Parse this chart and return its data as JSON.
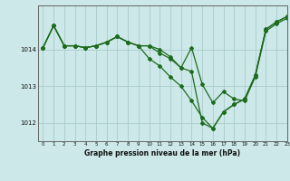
{
  "title": "Graphe pression niveau de la mer (hPa)",
  "bg_color": "#cce8e8",
  "grid_color": "#aacccc",
  "line_color": "#1e6b1e",
  "xlim": [
    -0.5,
    23
  ],
  "ylim": [
    1011.5,
    1015.2
  ],
  "yticks": [
    1012,
    1013,
    1014
  ],
  "xticks": [
    0,
    1,
    2,
    3,
    4,
    5,
    6,
    7,
    8,
    9,
    10,
    11,
    12,
    13,
    14,
    15,
    16,
    17,
    18,
    19,
    20,
    21,
    22,
    23
  ],
  "series1": [
    1014.05,
    1014.65,
    1014.1,
    1014.1,
    1014.05,
    1014.1,
    1014.2,
    1014.35,
    1014.2,
    1014.1,
    1014.1,
    1013.9,
    1013.75,
    1013.5,
    1014.05,
    1013.05,
    1012.55,
    1012.85,
    1012.65,
    1012.6,
    1013.25,
    1014.5,
    1014.7,
    1014.85
  ],
  "series2": [
    1014.05,
    1014.65,
    1014.1,
    1014.1,
    1014.05,
    1014.1,
    1014.2,
    1014.35,
    1014.2,
    1014.1,
    1014.1,
    1014.0,
    1013.8,
    1013.5,
    1013.4,
    1012.0,
    1011.85,
    1012.3,
    1012.5,
    1012.65,
    1013.3,
    1014.55,
    1014.75,
    1014.9
  ],
  "series3": [
    1014.05,
    1014.65,
    1014.1,
    1014.1,
    1014.05,
    1014.1,
    1014.2,
    1014.35,
    1014.2,
    1014.1,
    1013.75,
    1013.55,
    1013.25,
    1013.0,
    1012.6,
    1012.15,
    1011.85,
    1012.3,
    1012.5,
    1012.65,
    1013.3,
    1014.55,
    1014.75,
    1014.9
  ]
}
